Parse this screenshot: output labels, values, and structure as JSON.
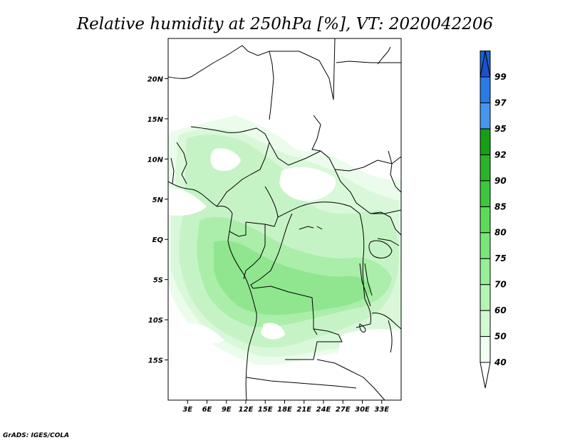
{
  "title": "Relative humidity at 250hPa [%], VT: 2020042206",
  "credit": "GrADS: IGES/COLA",
  "map": {
    "lon_range": [
      0,
      36
    ],
    "lat_range": [
      -20,
      25
    ],
    "lat_ticks": [
      {
        "value": 20,
        "label": "20N"
      },
      {
        "value": 15,
        "label": "15N"
      },
      {
        "value": 10,
        "label": "10N"
      },
      {
        "value": 5,
        "label": "5N"
      },
      {
        "value": 0,
        "label": "EQ"
      },
      {
        "value": -5,
        "label": "5S"
      },
      {
        "value": -10,
        "label": "10S"
      },
      {
        "value": -15,
        "label": "15S"
      }
    ],
    "lon_ticks": [
      {
        "value": 3,
        "label": "3E"
      },
      {
        "value": 6,
        "label": "6E"
      },
      {
        "value": 9,
        "label": "9E"
      },
      {
        "value": 12,
        "label": "12E"
      },
      {
        "value": 15,
        "label": "15E"
      },
      {
        "value": 18,
        "label": "18E"
      },
      {
        "value": 21,
        "label": "21E"
      },
      {
        "value": 24,
        "label": "24E"
      },
      {
        "value": 27,
        "label": "27E"
      },
      {
        "value": 30,
        "label": "30E"
      },
      {
        "value": 33,
        "label": "33E"
      }
    ]
  },
  "colorbar": {
    "levels": [
      "40",
      "50",
      "60",
      "70",
      "75",
      "80",
      "85",
      "90",
      "92",
      "95",
      "97",
      "99"
    ],
    "colors": [
      "#f0fff0",
      "#d2fad2",
      "#b4f5b4",
      "#96f096",
      "#78e678",
      "#5adc5a",
      "#3cc83c",
      "#28b428",
      "#14a014",
      "#4696f0",
      "#2a7ae6",
      "#1464d2",
      "#1e50c8"
    ]
  }
}
